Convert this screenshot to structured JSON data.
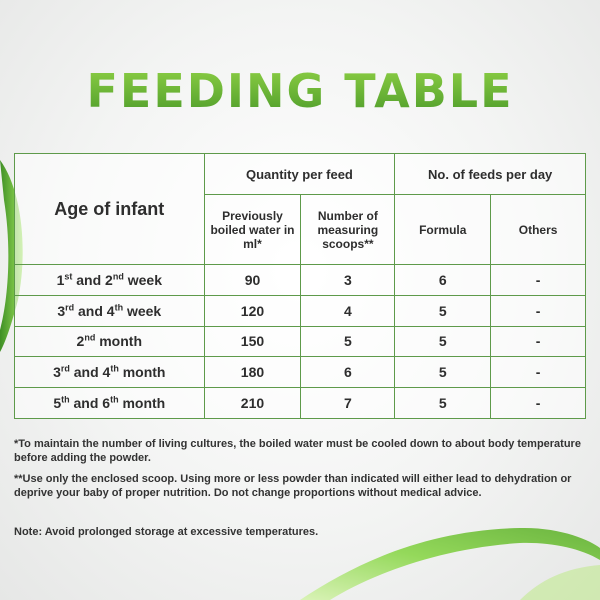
{
  "title": "FEEDING TABLE",
  "table": {
    "age_header": "Age of infant",
    "quantity_header": "Quantity per feed",
    "feeds_header": "No. of feeds per day",
    "sub_headers": {
      "water": "Previously boiled water in ml*",
      "scoops": "Number of measuring scoops**",
      "formula": "Formula",
      "others": "Others"
    },
    "rows": [
      {
        "age_a": "1",
        "sup_a": "st",
        "mid": " and ",
        "age_b": "2",
        "sup_b": "nd",
        "unit": " week",
        "water": "90",
        "scoops": "3",
        "formula": "6",
        "others": "-"
      },
      {
        "age_a": "3",
        "sup_a": "rd",
        "mid": " and ",
        "age_b": "4",
        "sup_b": "th",
        "unit": " week",
        "water": "120",
        "scoops": "4",
        "formula": "5",
        "others": "-"
      },
      {
        "age_a": "2",
        "sup_a": "nd",
        "mid": "",
        "age_b": "",
        "sup_b": "",
        "unit": " month",
        "water": "150",
        "scoops": "5",
        "formula": "5",
        "others": "-"
      },
      {
        "age_a": "3",
        "sup_a": "rd",
        "mid": " and ",
        "age_b": "4",
        "sup_b": "th",
        "unit": " month",
        "water": "180",
        "scoops": "6",
        "formula": "5",
        "others": "-"
      },
      {
        "age_a": "5",
        "sup_a": "th",
        "mid": " and ",
        "age_b": "6",
        "sup_b": "th",
        "unit": " month",
        "water": "210",
        "scoops": "7",
        "formula": "5",
        "others": "-"
      }
    ]
  },
  "notes": {
    "note1": "*To maintain the number of living cultures, the boiled water must be cooled down to about body temperature before adding the powder.",
    "note2": "**Use only the enclosed scoop. Using more or less powder than indicated will either lead to dehydration or deprive your baby of proper nutrition. Do not change proportions without medical advice.",
    "note3": "Note: Avoid prolonged storage at excessive temperatures."
  },
  "colors": {
    "title_green": "#5aa832",
    "border_green": "#5e9a4a",
    "swoosh_green": "#7cc843"
  }
}
